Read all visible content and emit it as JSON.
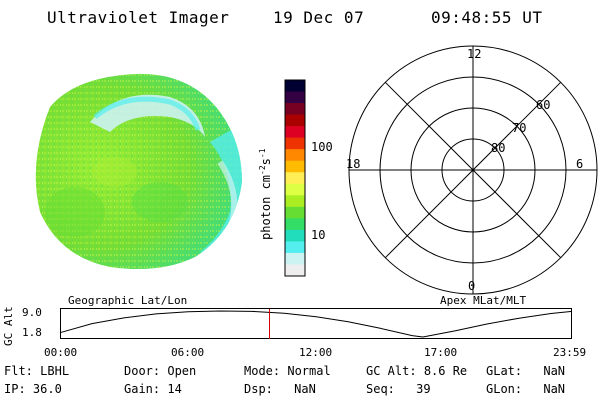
{
  "header": {
    "instrument": "Ultraviolet Imager",
    "date": "19 Dec 07",
    "time": "09:48:55 UT"
  },
  "colorbar": {
    "unit_label": "photon cm",
    "unit_sup1": "-2",
    "unit_mid": "s",
    "unit_sup2": "-1",
    "ticks": [
      {
        "label": "100",
        "value": 100
      },
      {
        "label": "10",
        "value": 10
      }
    ],
    "colors": [
      "#000033",
      "#330044",
      "#770022",
      "#aa0000",
      "#dd0022",
      "#ee3300",
      "#ff8800",
      "#ffbb00",
      "#ffee55",
      "#ddff44",
      "#aaee22",
      "#66dd33",
      "#33dd66",
      "#22ddbb",
      "#55eeee",
      "#ccf2f2",
      "#eeeeee"
    ]
  },
  "polar_plot": {
    "clock_labels": {
      "top": "12",
      "left": "18",
      "right": "6",
      "bottom": "0"
    },
    "lat_labels": [
      "60",
      "70",
      "80"
    ],
    "circle_latitudes": [
      80,
      70,
      60,
      50
    ]
  },
  "bar": {
    "left_title": "Geographic Lat/Lon",
    "right_title": "Apex MLat/MLT",
    "ylabel": "GC Alt",
    "y_ticks": [
      "9.0",
      "1.8"
    ],
    "x_ticks": [
      "00:00",
      "06:00",
      "12:00",
      "17:00",
      "23:59"
    ]
  },
  "chart_data": {
    "type": "line",
    "title": "",
    "xlabel": "",
    "ylabel": "GC Alt",
    "x": [
      "00:00",
      "01:30",
      "03:00",
      "04:30",
      "06:00",
      "07:30",
      "09:00",
      "10:30",
      "12:00",
      "13:30",
      "15:00",
      "16:30",
      "17:00",
      "18:30",
      "20:00",
      "21:30",
      "23:00",
      "23:59"
    ],
    "series": [
      {
        "values": [
          3.0,
          5.5,
          7.1,
          8.2,
          8.8,
          9.0,
          8.9,
          8.4,
          7.4,
          6.0,
          4.2,
          2.2,
          1.8,
          3.5,
          5.4,
          7.0,
          8.3,
          8.9
        ]
      }
    ],
    "ylim": [
      1.8,
      9.0
    ],
    "marker_time": "09:48:55",
    "marker_color": "#dd0000"
  },
  "info": {
    "col1": [
      {
        "k": "Flt:",
        "v": "LBHL"
      },
      {
        "k": "IP:",
        "v": "36.0"
      }
    ],
    "col2": [
      {
        "k": "Door:",
        "v": "Open"
      },
      {
        "k": "Gain:",
        "v": "14"
      }
    ],
    "col3": [
      {
        "k": "Mode:",
        "v": "Normal"
      },
      {
        "k": "Dsp:",
        "v": "NaN"
      }
    ],
    "col4": [
      {
        "k": "GC Alt:",
        "v": "8.6 Re"
      },
      {
        "k": "Seq:",
        "v": "39"
      }
    ],
    "col5": [
      {
        "k": "GLat:",
        "v": "NaN"
      },
      {
        "k": "GLon:",
        "v": "NaN"
      }
    ]
  }
}
